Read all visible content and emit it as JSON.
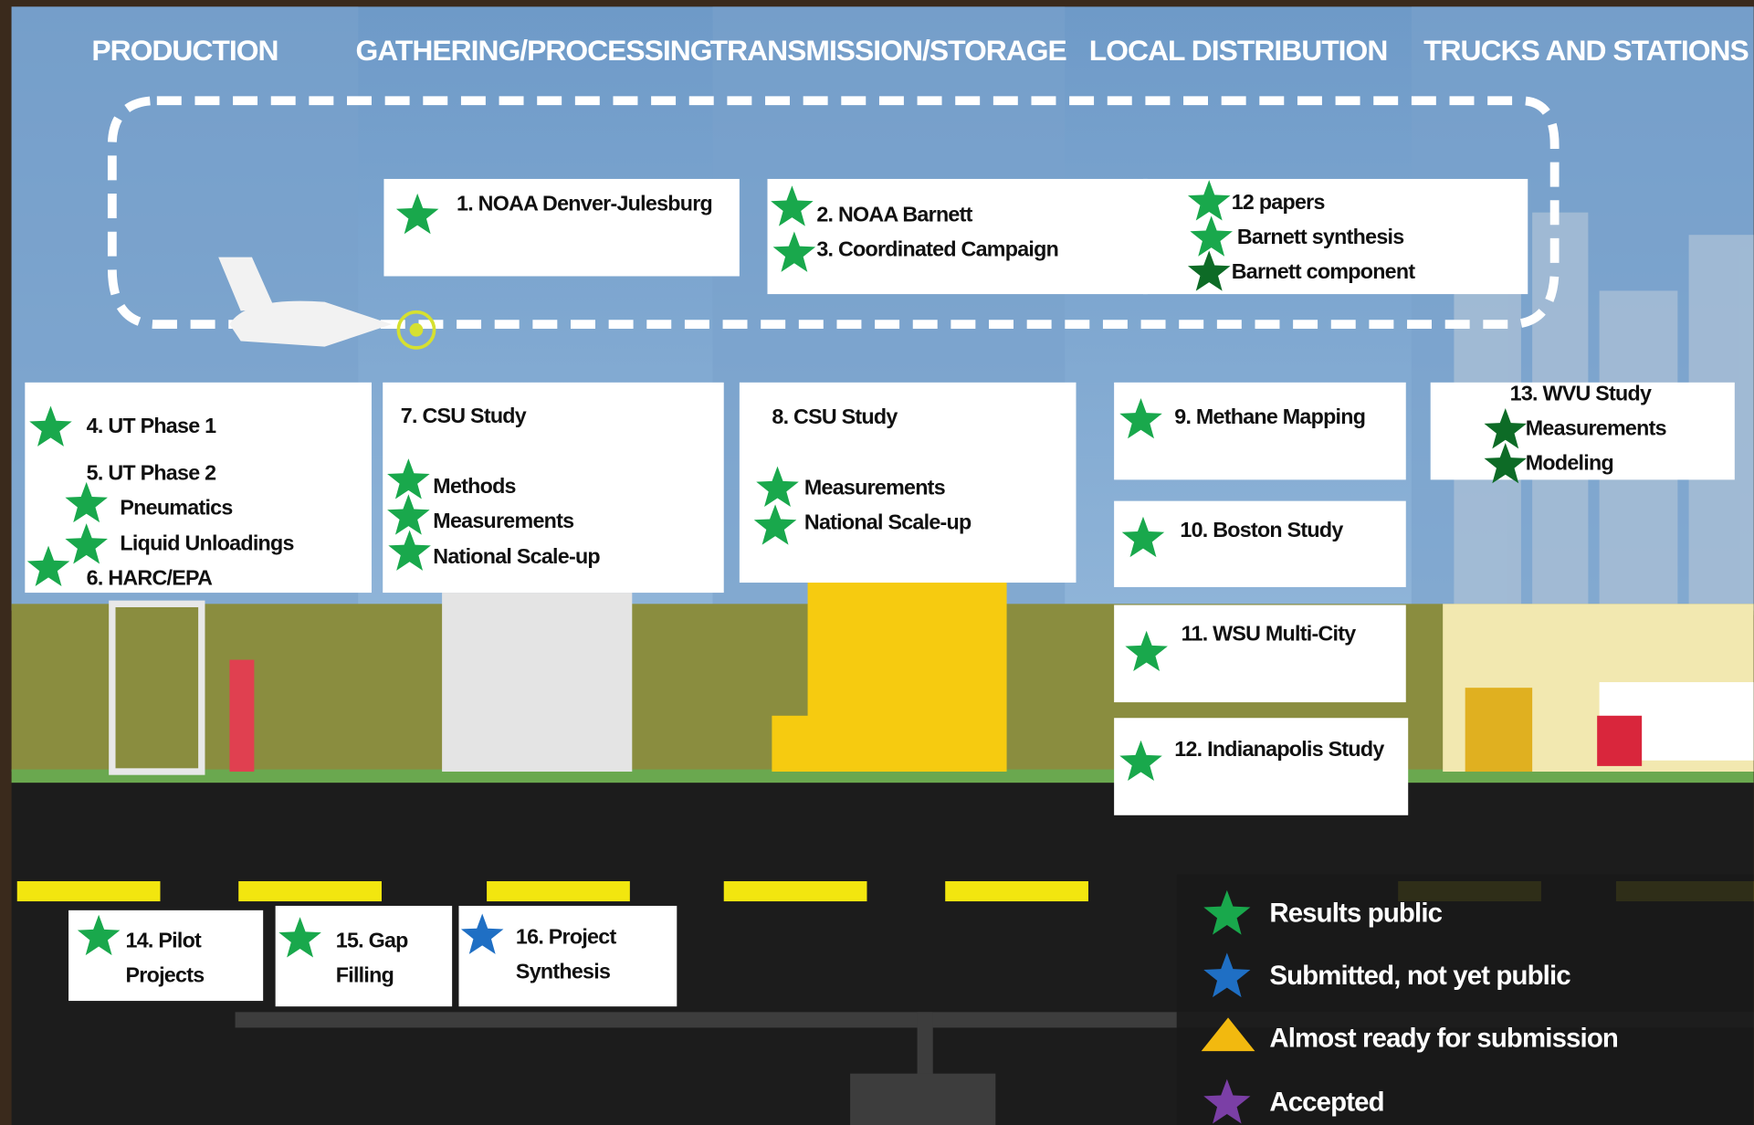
{
  "sectors": [
    "PRODUCTION",
    "GATHERING/PROCESSING",
    "TRANSMISSION/STORAGE",
    "LOCAL DISTRIBUTION",
    "TRUCKS AND STATIONS"
  ],
  "boxes": [
    {
      "lines": [
        {
          "text": "1. NOAA Denver-Julesburg",
          "star": "#19a84c"
        }
      ]
    },
    {
      "lines": [
        {
          "text": "2. NOAA Barnett",
          "star": "#19a84c"
        },
        {
          "text": "3. Coordinated Campaign",
          "star": "#19a84c"
        }
      ]
    },
    {
      "lines": [
        {
          "text": "12 papers",
          "star": "#19a84c"
        },
        {
          "text": "Barnett synthesis",
          "star": "#19a84c"
        },
        {
          "text": "Barnett component",
          "star": "#0d6b26"
        }
      ]
    },
    {
      "lines": [
        {
          "text": "4. UT Phase 1",
          "star": "#19a84c"
        },
        {
          "text": "5. UT Phase 2"
        },
        {
          "text": "Pneumatics",
          "star": "#19a84c"
        },
        {
          "text": "Liquid Unloadings",
          "star": "#19a84c"
        },
        {
          "text": "6. HARC/EPA",
          "star": "#19a84c"
        }
      ]
    },
    {
      "lines": [
        {
          "text": "7. CSU Study"
        },
        {
          "text": "Methods",
          "star": "#19a84c"
        },
        {
          "text": "Measurements",
          "star": "#19a84c"
        },
        {
          "text": "National Scale-up",
          "star": "#19a84c"
        }
      ]
    },
    {
      "lines": [
        {
          "text": "8. CSU Study"
        },
        {
          "text": "Measurements",
          "star": "#19a84c"
        },
        {
          "text": "National Scale-up",
          "star": "#19a84c"
        }
      ]
    },
    {
      "lines": [
        {
          "text": "9. Methane Mapping",
          "star": "#19a84c"
        }
      ]
    },
    {
      "lines": [
        {
          "text": "10. Boston Study",
          "star": "#19a84c"
        }
      ]
    },
    {
      "lines": [
        {
          "text": "11.  WSU Multi-City",
          "star": "#19a84c"
        }
      ]
    },
    {
      "lines": [
        {
          "text": "12. Indianapolis Study",
          "star": "#19a84c"
        }
      ]
    },
    {
      "lines": [
        {
          "text": "13. WVU Study"
        },
        {
          "text": "Measurements",
          "star": "#0d6b26"
        },
        {
          "text": "Modeling",
          "star": "#0d6b26"
        }
      ]
    },
    {
      "lines": [
        {
          "text": "14. Pilot",
          "star": "#19a84c"
        },
        {
          "text": "Projects"
        }
      ]
    },
    {
      "lines": [
        {
          "text": "15. Gap",
          "star": "#19a84c"
        },
        {
          "text": "Filling"
        }
      ]
    },
    {
      "lines": [
        {
          "text": "16. Project",
          "star": "#1f6fc4"
        },
        {
          "text": "Synthesis"
        }
      ]
    }
  ],
  "legend": [
    {
      "label": "Results public",
      "color": "#19a84c"
    },
    {
      "label": "Submitted, not yet public",
      "color": "#1f6fc4"
    },
    {
      "label": "Almost ready for submission",
      "color": "#f2b90f"
    },
    {
      "label": "Accepted",
      "color": "#7b3fa6"
    }
  ]
}
